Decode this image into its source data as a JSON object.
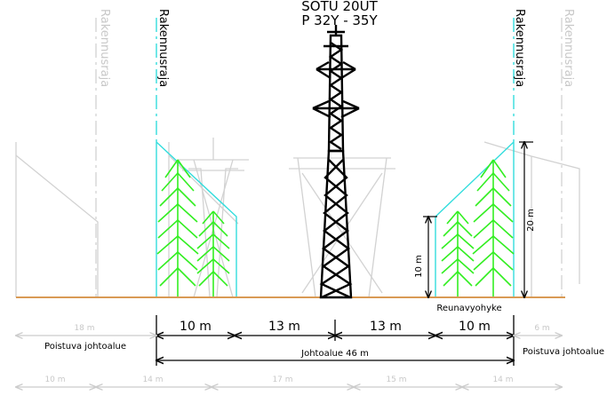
{
  "header": {
    "line1": "SOTU 20UT",
    "line2": "P 32Y - 35Y"
  },
  "building_limits": {
    "inner_left": "Rakennusraja",
    "inner_right": "Rakennusraja",
    "outer_left": "Rakennusraja",
    "outer_right": "Rakennusraja"
  },
  "dimensions": {
    "top_row": [
      "10 m",
      "13 m",
      "13 m",
      "10 m"
    ],
    "zone_total": "Johtoalue 46 m",
    "removed_left_width": "18 m",
    "removed_right_width": "6 m",
    "bottom_row": [
      "10 m",
      "14 m",
      "17 m",
      "15 m",
      "14 m"
    ],
    "tree_height_small": "10 m",
    "tree_height_large": "20 m"
  },
  "labels": {
    "removed_left": "Poistuva johtoalue",
    "removed_right": "Poistuva johtoalue",
    "edge_zone": "Reunavyohyke"
  },
  "colors": {
    "ground": "#d99a55",
    "trees": "#33ee22",
    "limit_line": "#33dddd",
    "ghost": "#cccccc",
    "tower": "#000000"
  }
}
